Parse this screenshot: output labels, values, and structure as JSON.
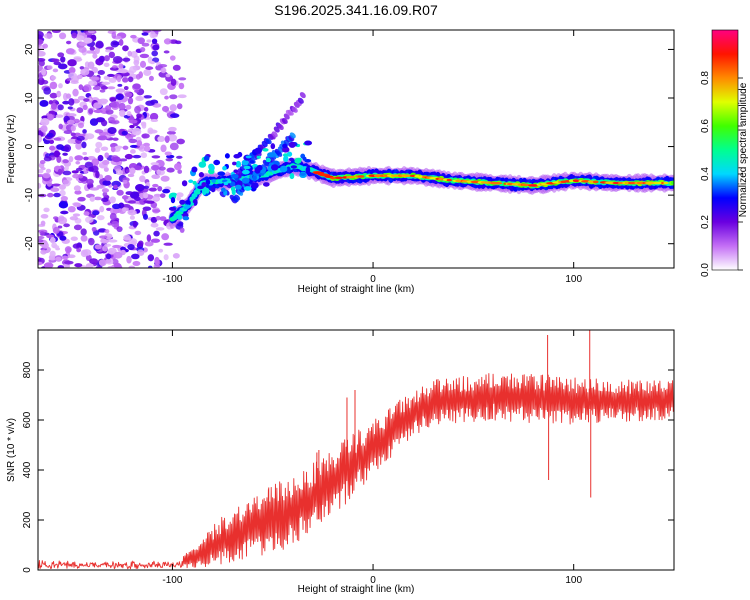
{
  "title": "S196.2025.341.16.09.R07",
  "colors": {
    "line": "#e8302e",
    "axis": "#000000",
    "background": "#ffffff"
  },
  "chart_data": [
    {
      "type": "heatmap",
      "xlabel": "Height of straight line (km)",
      "ylabel": "Frequency (Hz)",
      "xlim": [
        -167,
        150
      ],
      "ylim": [
        -25,
        24
      ],
      "xticks": [
        -100,
        0,
        100
      ],
      "yticks": [
        -20,
        -10,
        0,
        10,
        20
      ],
      "colorbar": {
        "label": "Normalized spectral amplitude",
        "range": [
          0,
          1
        ],
        "ticks": [
          0.0,
          0.2,
          0.4,
          0.6,
          0.8
        ]
      },
      "noise_region_x": [
        -167,
        -95
      ],
      "ridge": [
        {
          "x": -100,
          "f": -15
        },
        {
          "x": -92,
          "f": -12
        },
        {
          "x": -85,
          "f": -7.5
        },
        {
          "x": -70,
          "f": -7
        },
        {
          "x": -55,
          "f": -6
        },
        {
          "x": -40,
          "f": -4
        },
        {
          "x": -30,
          "f": -5
        },
        {
          "x": -20,
          "f": -6.5
        },
        {
          "x": 0,
          "f": -6
        },
        {
          "x": 20,
          "f": -6
        },
        {
          "x": 40,
          "f": -7
        },
        {
          "x": 60,
          "f": -7.5
        },
        {
          "x": 80,
          "f": -8
        },
        {
          "x": 100,
          "f": -7
        },
        {
          "x": 120,
          "f": -7.5
        },
        {
          "x": 150,
          "f": -7.5
        }
      ],
      "branches": [
        {
          "from": {
            "x": -75,
            "f": -10
          },
          "to": {
            "x": -35,
            "f": 10
          }
        },
        {
          "from": {
            "x": -70,
            "f": -11
          },
          "to": {
            "x": -40,
            "f": 2
          }
        }
      ]
    },
    {
      "type": "line",
      "xlabel": "Height of straight line (km)",
      "ylabel": "SNR (10 * v/v)",
      "xlim": [
        -167,
        150
      ],
      "ylim": [
        0,
        960
      ],
      "xticks": [
        -100,
        0,
        100
      ],
      "yticks": [
        0,
        200,
        400,
        600,
        800
      ],
      "envelope": [
        {
          "x": -167,
          "lo": 0,
          "hi": 45
        },
        {
          "x": -100,
          "lo": 0,
          "hi": 45
        },
        {
          "x": -90,
          "lo": 5,
          "hi": 80
        },
        {
          "x": -75,
          "lo": 20,
          "hi": 220
        },
        {
          "x": -60,
          "lo": 50,
          "hi": 300
        },
        {
          "x": -45,
          "lo": 80,
          "hi": 360
        },
        {
          "x": -30,
          "lo": 150,
          "hi": 430
        },
        {
          "x": -15,
          "lo": 250,
          "hi": 520
        },
        {
          "x": 0,
          "lo": 380,
          "hi": 600
        },
        {
          "x": 15,
          "lo": 500,
          "hi": 690
        },
        {
          "x": 30,
          "lo": 580,
          "hi": 760
        },
        {
          "x": 60,
          "lo": 600,
          "hi": 790
        },
        {
          "x": 90,
          "lo": 580,
          "hi": 780
        },
        {
          "x": 120,
          "lo": 590,
          "hi": 760
        },
        {
          "x": 150,
          "lo": 600,
          "hi": 760
        }
      ],
      "spikes": [
        {
          "x": -52,
          "y": 330
        },
        {
          "x": -28,
          "y": 470
        },
        {
          "x": -27,
          "y": 480
        },
        {
          "x": -13,
          "y": 690
        },
        {
          "x": -9,
          "y": 720
        },
        {
          "x": 87,
          "y": 940
        },
        {
          "x": 87.5,
          "y": 360
        },
        {
          "x": 108,
          "y": 960
        },
        {
          "x": 108.5,
          "y": 290
        }
      ]
    }
  ]
}
